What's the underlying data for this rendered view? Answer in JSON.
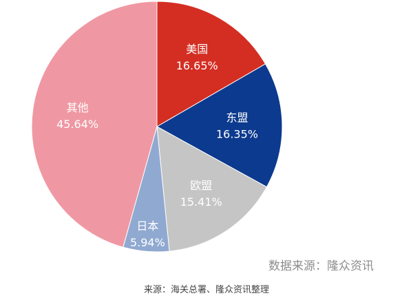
{
  "chart_data": {
    "type": "pie",
    "title": "",
    "slices": [
      {
        "label": "美国",
        "value": 16.65,
        "value_text": "16.65%",
        "color": "#d42e23"
      },
      {
        "label": "东盟",
        "value": 16.35,
        "value_text": "16.35%",
        "color": "#0c3a8e"
      },
      {
        "label": "欧盟",
        "value": 15.41,
        "value_text": "15.41%",
        "color": "#c5c5c5"
      },
      {
        "label": "日本",
        "value": 5.94,
        "value_text": "5.94%",
        "color": "#90a9d1"
      },
      {
        "label": "其他",
        "value": 45.64,
        "value_text": "45.64%",
        "color": "#ef98a3"
      }
    ],
    "legend": "none"
  },
  "watermark": "数据来源：隆众资讯",
  "source": "来源：海关总署、隆众资讯整理"
}
